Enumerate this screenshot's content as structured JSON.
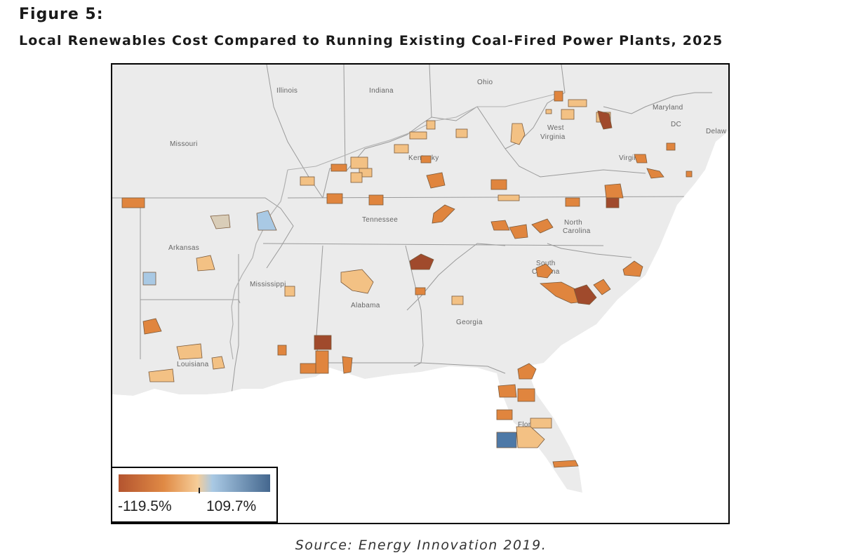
{
  "figure": {
    "label": "Figure 5:",
    "title": "Local Renewables Cost Compared to Running Existing Coal-Fired Power Plants, 2025",
    "source": "Source: Energy Innovation 2019."
  },
  "map": {
    "state_labels": [
      "Illinois",
      "Indiana",
      "Ohio",
      "Missouri",
      "West Virginia",
      "Maryland",
      "DC",
      "Delaw",
      "Kentucky",
      "Virginia",
      "Tennessee",
      "North Carolina",
      "Arkansas",
      "Mississippi",
      "Alabama",
      "South Carolina",
      "Georgia",
      "Louisiana",
      "Florida"
    ],
    "colors": {
      "land": "#ebebeb",
      "water": "#ffffff",
      "border": "#9a9a9a",
      "dark_brown": "#a04a2c",
      "orange": "#e0853e",
      "light_orange": "#f3c184",
      "tan": "#d9cdb8",
      "light_blue": "#a9c9e4",
      "blue": "#4e79a7"
    }
  },
  "legend": {
    "min_label": "-119.5%",
    "max_label": "109.7%",
    "gradient": [
      "#b4542f",
      "#e08a45",
      "#f6cd98",
      "#a9c9e4",
      "#44678e"
    ]
  }
}
